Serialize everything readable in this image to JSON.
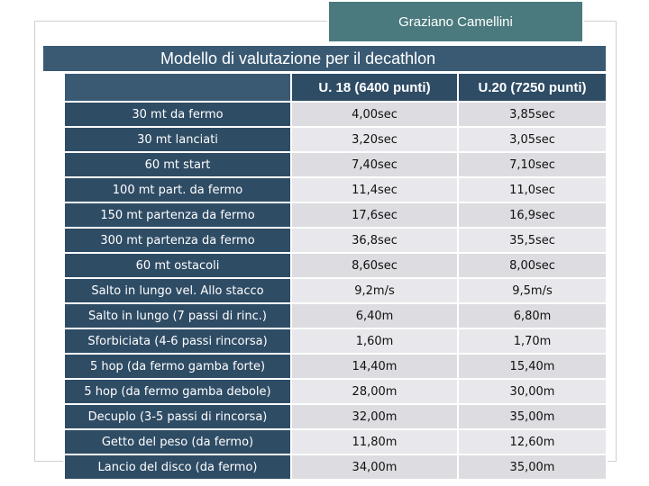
{
  "author": "Graziano Camellini",
  "title": "Modello di valutazione per il decathlon",
  "columns": [
    "",
    "U. 18 (6400 punti)",
    "U.20 (7250 punti)"
  ],
  "rows": [
    {
      "label": "30 mt da fermo",
      "u18": "4,00sec",
      "u20": "3,85sec"
    },
    {
      "label": "30 mt lanciati",
      "u18": "3,20sec",
      "u20": "3,05sec"
    },
    {
      "label": "60 mt start",
      "u18": "7,40sec",
      "u20": "7,10sec"
    },
    {
      "label": "100 mt part. da fermo",
      "u18": "11,4sec",
      "u20": "11,0sec"
    },
    {
      "label": "150 mt partenza da fermo",
      "u18": "17,6sec",
      "u20": "16,9sec"
    },
    {
      "label": "300 mt partenza da fermo",
      "u18": "36,8sec",
      "u20": "35,5sec"
    },
    {
      "label": "60 mt ostacoli",
      "u18": "8,60sec",
      "u20": "8,00sec"
    },
    {
      "label": "Salto in lungo vel. Allo stacco",
      "u18": "9,2m/s",
      "u20": "9,5m/s"
    },
    {
      "label": "Salto in lungo (7 passi di rinc.)",
      "u18": "6,40m",
      "u20": "6,80m"
    },
    {
      "label": "Sforbiciata (4-6 passi rincorsa)",
      "u18": "1,60m",
      "u20": "1,70m"
    },
    {
      "label": "5 hop (da fermo gamba forte)",
      "u18": "14,40m",
      "u20": "15,40m"
    },
    {
      "label": "5 hop (da fermo gamba debole)",
      "u18": "28,00m",
      "u20": "30,00m"
    },
    {
      "label": "Decuplo (3-5 passi di rincorsa)",
      "u18": "32,00m",
      "u20": "35,00m"
    },
    {
      "label": "Getto del peso (da fermo)",
      "u18": "11,80m",
      "u20": "12,60m"
    },
    {
      "label": "Lancio del disco (da fermo)",
      "u18": "34,00m",
      "u20": "35,00m"
    }
  ]
}
